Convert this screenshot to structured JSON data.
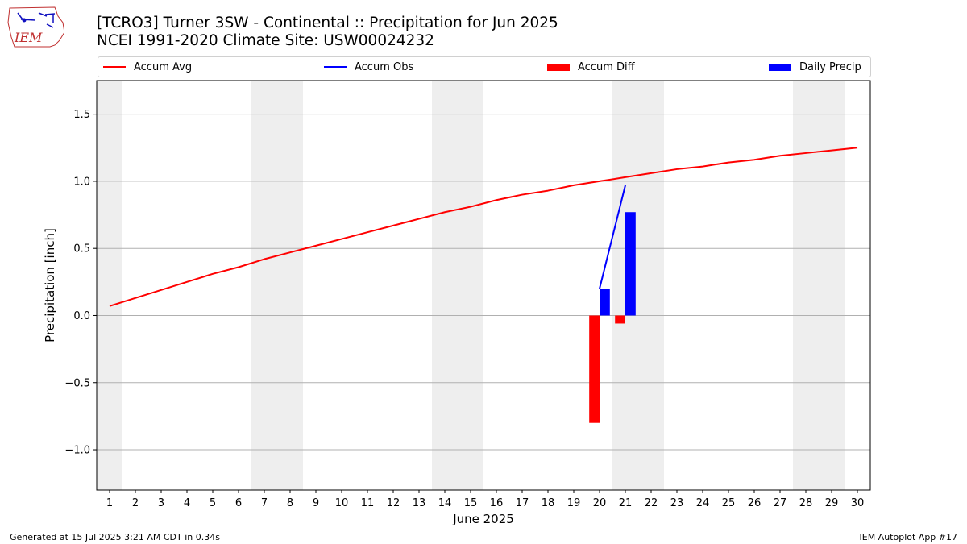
{
  "header": {
    "logo_text": "IEM",
    "title_line1": "[TCRO3] Turner 3SW - Continental :: Precipitation for Jun 2025",
    "title_line2": "NCEI 1991-2020 Climate Site: USW00024232"
  },
  "legend": {
    "items": [
      {
        "label": "Accum Avg",
        "kind": "line",
        "color": "#ff0000"
      },
      {
        "label": "Accum Obs",
        "kind": "line",
        "color": "#0000ff"
      },
      {
        "label": "Accum Diff",
        "kind": "box",
        "color": "#ff0000"
      },
      {
        "label": "Daily Precip",
        "kind": "box",
        "color": "#0000ff"
      }
    ]
  },
  "chart_data": {
    "type": "bar",
    "xlabel": "June 2025",
    "ylabel": "Precipitation [inch]",
    "xlim": [
      0.5,
      30.5
    ],
    "ylim": [
      -1.3,
      1.75
    ],
    "yticks": [
      -1.0,
      -0.5,
      0.0,
      0.5,
      1.0,
      1.5
    ],
    "ytick_labels": [
      "−1.0",
      "−0.5",
      "0.0",
      "0.5",
      "1.0",
      "1.5"
    ],
    "x": [
      1,
      2,
      3,
      4,
      5,
      6,
      7,
      8,
      9,
      10,
      11,
      12,
      13,
      14,
      15,
      16,
      17,
      18,
      19,
      20,
      21,
      22,
      23,
      24,
      25,
      26,
      27,
      28,
      29,
      30
    ],
    "weekend_days": [
      1,
      7,
      8,
      14,
      15,
      21,
      22,
      28,
      29
    ],
    "grid": "horizontal",
    "series": [
      {
        "name": "Accum Avg",
        "type": "line",
        "color": "#ff0000",
        "x": [
          1,
          2,
          3,
          4,
          5,
          6,
          7,
          8,
          9,
          10,
          11,
          12,
          13,
          14,
          15,
          16,
          17,
          18,
          19,
          20,
          21,
          22,
          23,
          24,
          25,
          26,
          27,
          28,
          29,
          30
        ],
        "values": [
          0.07,
          0.13,
          0.19,
          0.25,
          0.31,
          0.36,
          0.42,
          0.47,
          0.52,
          0.57,
          0.62,
          0.67,
          0.72,
          0.77,
          0.81,
          0.86,
          0.9,
          0.93,
          0.97,
          1.0,
          1.03,
          1.06,
          1.09,
          1.11,
          1.14,
          1.16,
          1.19,
          1.21,
          1.23,
          1.25
        ]
      },
      {
        "name": "Accum Obs",
        "type": "line",
        "color": "#0000ff",
        "x": [
          20,
          21
        ],
        "values": [
          0.2,
          0.97
        ]
      },
      {
        "name": "Accum Diff",
        "type": "bar",
        "color": "#ff0000",
        "x": [
          20,
          21
        ],
        "values": [
          -0.8,
          -0.06
        ]
      },
      {
        "name": "Daily Precip",
        "type": "bar",
        "color": "#0000ff",
        "x": [
          20,
          21
        ],
        "values": [
          0.2,
          0.77
        ]
      }
    ]
  },
  "footer": {
    "left": "Generated at 15 Jul 2025 3:21 AM CDT in 0.34s",
    "right": "IEM Autoplot App #17"
  }
}
